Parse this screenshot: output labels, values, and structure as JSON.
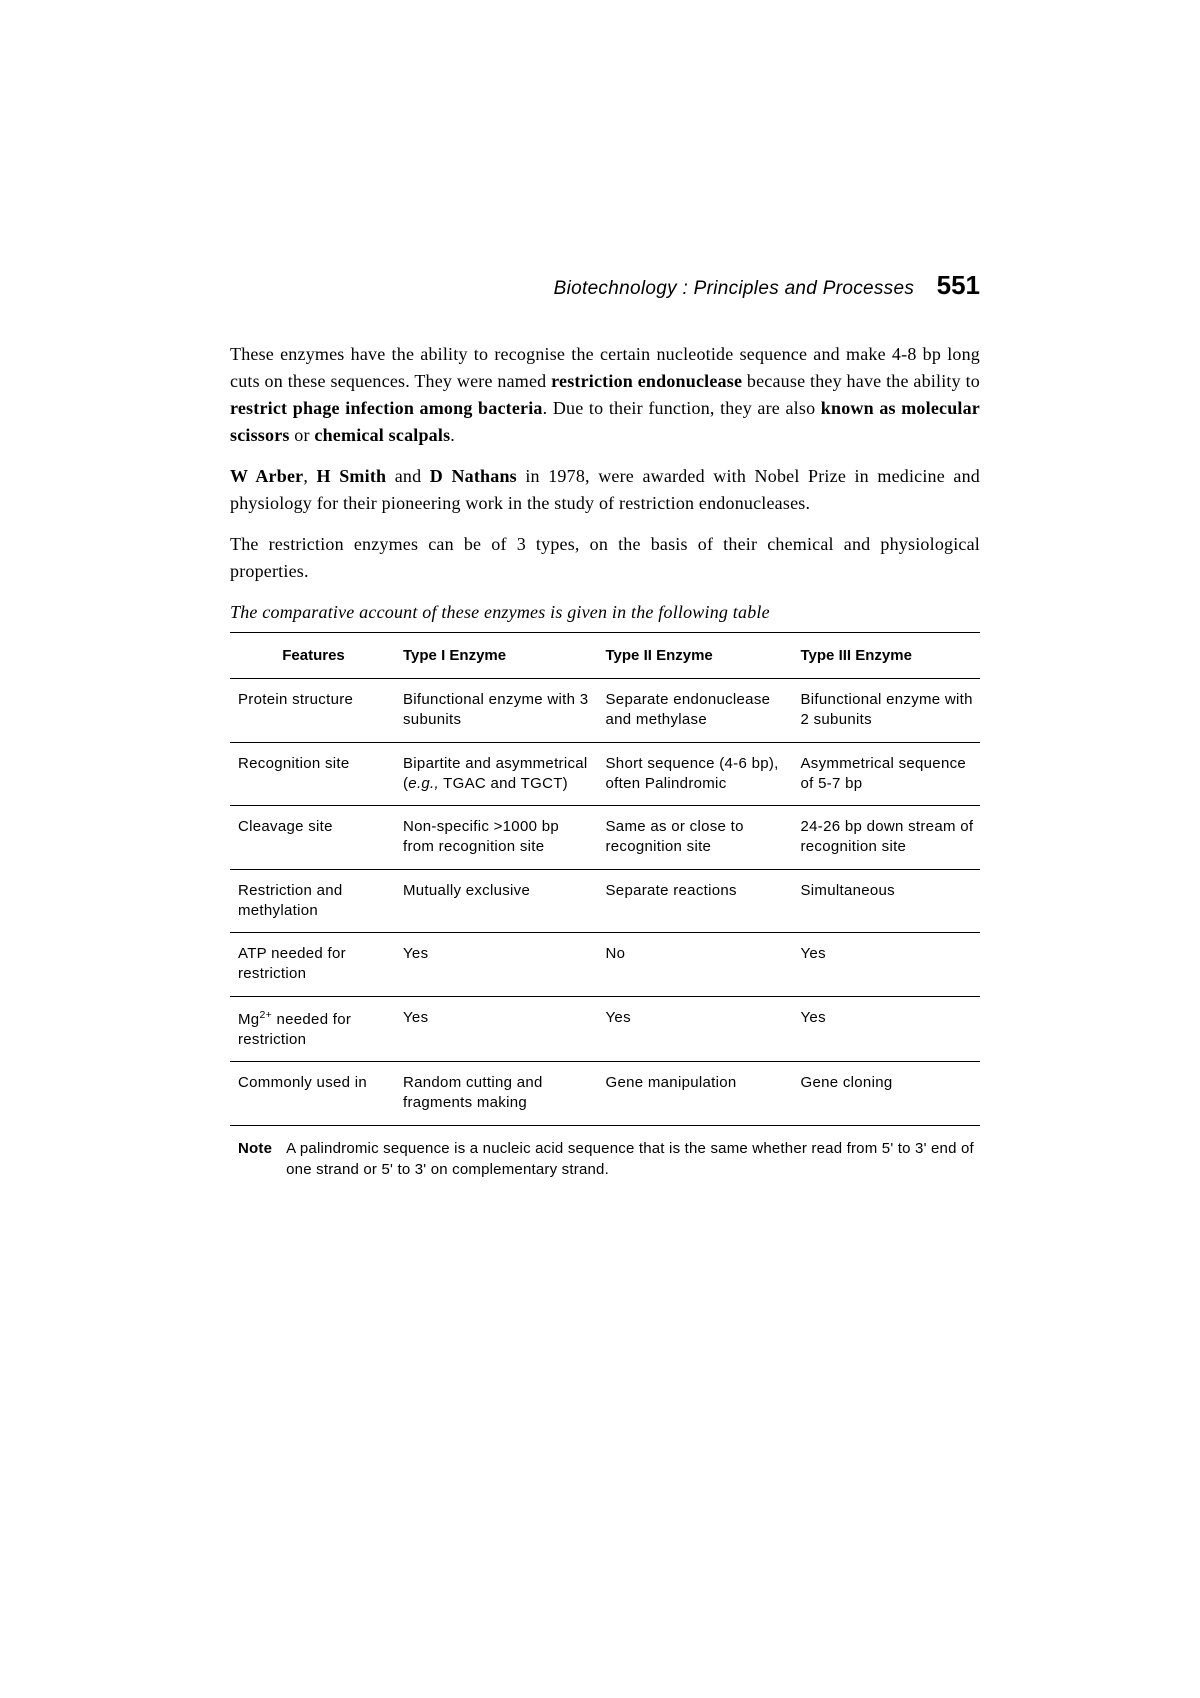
{
  "header": {
    "title": "Biotechnology : Principles and Processes",
    "page_number": "551"
  },
  "paragraphs": {
    "p1_part1": "These enzymes have the ability to recognise the certain nucleotide sequence and make 4-8 bp long cuts on these sequences. They were named ",
    "p1_bold1": "restriction endonuclease",
    "p1_part2": " because they have the ability to ",
    "p1_bold2": "restrict phage infection among bacteria",
    "p1_part3": ". Due to their function, they are also ",
    "p1_bold3": "known as molecular scissors",
    "p1_part4": " or ",
    "p1_bold4": "chemical scalpals",
    "p1_part5": ".",
    "p2_bold1": "W Arber",
    "p2_part1": ", ",
    "p2_bold2": "H Smith",
    "p2_part2": " and ",
    "p2_bold3": "D Nathans",
    "p2_part3": " in 1978,  were awarded with Nobel Prize in medicine and physiology for their pioneering work in the study of restriction endonucleases.",
    "p3": "The restriction enzymes can be of 3 types, on the basis of their chemical and physiological properties."
  },
  "table_caption": "The comparative account of these enzymes is given in the following table",
  "table": {
    "headers": {
      "col1": "Features",
      "col2": "Type I Enzyme",
      "col3": "Type II Enzyme",
      "col4": "Type III Enzyme"
    },
    "rows": [
      {
        "feature": "Protein structure",
        "type1": "Bifunctional enzyme with 3 subunits",
        "type2": "Separate endonuclease and methylase",
        "type3": "Bifunctional enzyme with 2 subunits"
      },
      {
        "feature": "Recognition site",
        "type1_part1": "Bipartite and asymmetrical (",
        "type1_italic": "e.g.,",
        "type1_part2": " TGAC and TGCT)",
        "type2": "Short sequence (4-6 bp), often Palindromic",
        "type3": "Asymmetrical sequence of 5-7 bp"
      },
      {
        "feature": "Cleavage site",
        "type1": "Non-specific >1000 bp from recognition site",
        "type2": "Same as or close to recognition site",
        "type3": "24-26 bp down stream of recognition site"
      },
      {
        "feature": "Restriction and methylation",
        "type1": "Mutually exclusive",
        "type2": "Separate reactions",
        "type3": "Simultaneous"
      },
      {
        "feature": "ATP needed for restriction",
        "type1": "Yes",
        "type2": "No",
        "type3": "Yes"
      },
      {
        "feature_html": "Mg<sup>2+</sup> needed for restriction",
        "type1": "Yes",
        "type2": "Yes",
        "type3": "Yes"
      },
      {
        "feature": "Commonly used in",
        "type1": "Random cutting and fragments making",
        "type2": "Gene manipulation",
        "type3": "Gene cloning"
      }
    ]
  },
  "note": {
    "label": "Note",
    "text": "A palindromic sequence is a nucleic acid sequence that is the same whether read from 5' to 3' end of one strand or 5' to 3' on complementary strand."
  }
}
